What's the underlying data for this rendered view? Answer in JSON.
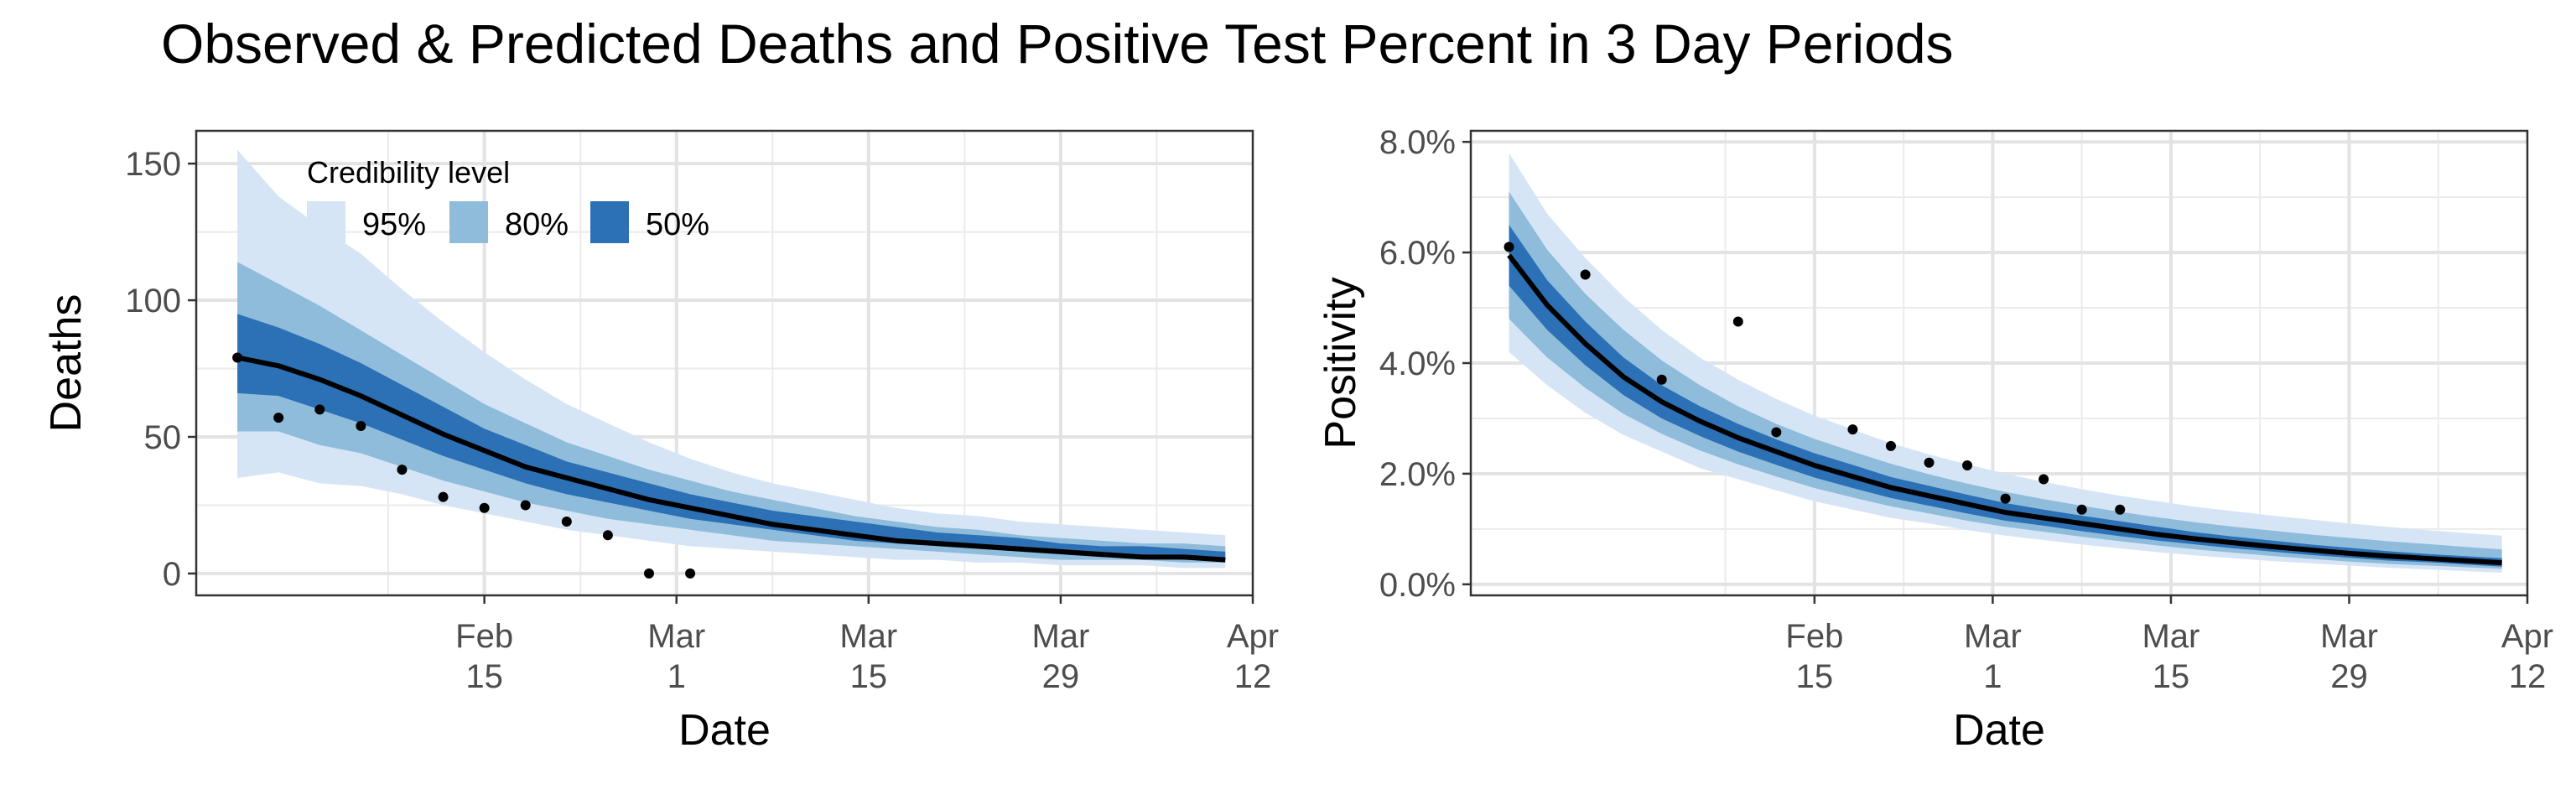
{
  "title": "Observed & Predicted Deaths and Positive Test Percent in 3 Day Periods",
  "legend": {
    "title": "Credibility level",
    "items": [
      {
        "label": "95%",
        "color": "#d6e5f5"
      },
      {
        "label": "80%",
        "color": "#8fbcdb"
      },
      {
        "label": "50%",
        "color": "#2c70b5"
      }
    ]
  },
  "chart_data": [
    {
      "type": "area",
      "panel": "deaths",
      "xlabel": "Date",
      "ylabel": "Deaths",
      "ylim": [
        -8,
        162
      ],
      "xlim": [
        "2021-01-25",
        "2021-04-12"
      ],
      "y_ticks": [
        {
          "value": 0,
          "label": "0"
        },
        {
          "value": 50,
          "label": "50"
        },
        {
          "value": 100,
          "label": "100"
        },
        {
          "value": 150,
          "label": "150"
        }
      ],
      "x_ticks": [
        {
          "date": "2021-02-15",
          "line1": "Feb",
          "line2": "15"
        },
        {
          "date": "2021-03-01",
          "line1": "Mar",
          "line2": "1"
        },
        {
          "date": "2021-03-15",
          "line1": "Mar",
          "line2": "15"
        },
        {
          "date": "2021-03-29",
          "line1": "Mar",
          "line2": "29"
        },
        {
          "date": "2021-04-12",
          "line1": "Apr",
          "line2": "12"
        }
      ],
      "x": [
        "2021-01-28",
        "2021-01-31",
        "2021-02-03",
        "2021-02-06",
        "2021-02-09",
        "2021-02-12",
        "2021-02-15",
        "2021-02-18",
        "2021-02-21",
        "2021-02-24",
        "2021-02-27",
        "2021-03-02",
        "2021-03-05",
        "2021-03-08",
        "2021-03-11",
        "2021-03-14",
        "2021-03-17",
        "2021-03-20",
        "2021-03-23",
        "2021-03-26",
        "2021-03-29",
        "2021-04-01",
        "2021-04-04",
        "2021-04-07",
        "2021-04-10"
      ],
      "median": [
        79,
        76,
        71,
        65,
        58,
        51,
        45,
        39,
        35,
        31,
        27,
        24,
        21,
        18,
        16,
        14,
        12,
        11,
        10,
        9,
        8,
        7,
        6,
        6,
        5
      ],
      "band_95": {
        "lower": [
          35,
          37,
          33,
          32,
          29,
          25,
          22,
          19,
          16,
          14,
          12,
          10,
          9,
          8,
          7,
          6,
          5,
          5,
          4,
          4,
          3,
          3,
          3,
          2,
          2
        ],
        "upper": [
          155,
          138,
          127,
          117,
          104,
          92,
          81,
          71,
          62,
          55,
          48,
          42,
          37,
          33,
          30,
          27,
          24,
          22,
          21,
          19,
          18,
          17,
          16,
          15,
          14
        ]
      },
      "band_80": {
        "lower": [
          52,
          52,
          47,
          44,
          39,
          34,
          30,
          26,
          23,
          20,
          18,
          16,
          14,
          12,
          11,
          10,
          9,
          8,
          7,
          6,
          5,
          5,
          5,
          4,
          4
        ],
        "upper": [
          114,
          106,
          98,
          89,
          80,
          71,
          62,
          55,
          48,
          43,
          38,
          34,
          30,
          27,
          24,
          21,
          19,
          17,
          16,
          14,
          13,
          12,
          11,
          11,
          10
        ]
      },
      "band_50": {
        "lower": [
          66,
          65,
          60,
          55,
          49,
          43,
          38,
          33,
          29,
          26,
          23,
          20,
          18,
          16,
          14,
          12,
          11,
          10,
          9,
          8,
          7,
          6,
          6,
          5,
          5
        ],
        "upper": [
          95,
          90,
          84,
          77,
          69,
          61,
          53,
          47,
          41,
          37,
          33,
          29,
          26,
          23,
          21,
          19,
          17,
          15,
          14,
          13,
          11,
          10,
          10,
          9,
          8
        ]
      },
      "observed": {
        "x": [
          "2021-01-28",
          "2021-01-31",
          "2021-02-03",
          "2021-02-06",
          "2021-02-09",
          "2021-02-12",
          "2021-02-15",
          "2021-02-18",
          "2021-02-21",
          "2021-02-24",
          "2021-02-27",
          "2021-03-02"
        ],
        "y": [
          79,
          57,
          60,
          54,
          38,
          28,
          24,
          25,
          19,
          14,
          0,
          0
        ]
      }
    },
    {
      "type": "area",
      "panel": "positivity",
      "xlabel": "Date",
      "ylabel": "Positivity",
      "ylim": [
        -0.2,
        8.2
      ],
      "xlim": [
        "2021-01-19",
        "2021-04-12"
      ],
      "y_ticks": [
        {
          "value": 0,
          "label": "0.0%"
        },
        {
          "value": 2,
          "label": "2.0%"
        },
        {
          "value": 4,
          "label": "4.0%"
        },
        {
          "value": 6,
          "label": "6.0%"
        },
        {
          "value": 8,
          "label": "8.0%"
        }
      ],
      "x_ticks": [
        {
          "date": "2021-02-15",
          "line1": "Feb",
          "line2": "15"
        },
        {
          "date": "2021-03-01",
          "line1": "Mar",
          "line2": "1"
        },
        {
          "date": "2021-03-15",
          "line1": "Mar",
          "line2": "15"
        },
        {
          "date": "2021-03-29",
          "line1": "Mar",
          "line2": "29"
        },
        {
          "date": "2021-04-12",
          "line1": "Apr",
          "line2": "12"
        }
      ],
      "x": [
        "2021-01-22",
        "2021-01-25",
        "2021-01-28",
        "2021-01-31",
        "2021-02-03",
        "2021-02-06",
        "2021-02-09",
        "2021-02-12",
        "2021-02-15",
        "2021-02-18",
        "2021-02-21",
        "2021-02-24",
        "2021-02-27",
        "2021-03-02",
        "2021-03-05",
        "2021-03-08",
        "2021-03-11",
        "2021-03-14",
        "2021-03-17",
        "2021-03-20",
        "2021-03-23",
        "2021-03-26",
        "2021-03-29",
        "2021-04-01",
        "2021-04-04",
        "2021-04-07",
        "2021-04-10"
      ],
      "median": [
        5.95,
        5.05,
        4.35,
        3.75,
        3.3,
        2.95,
        2.65,
        2.4,
        2.15,
        1.95,
        1.75,
        1.6,
        1.45,
        1.3,
        1.2,
        1.1,
        1.0,
        0.9,
        0.82,
        0.75,
        0.68,
        0.62,
        0.56,
        0.51,
        0.47,
        0.43,
        0.39
      ],
      "band_95": {
        "lower": [
          4.2,
          3.6,
          3.1,
          2.7,
          2.4,
          2.1,
          1.9,
          1.7,
          1.5,
          1.35,
          1.2,
          1.1,
          0.98,
          0.88,
          0.8,
          0.72,
          0.65,
          0.58,
          0.52,
          0.47,
          0.42,
          0.38,
          0.34,
          0.3,
          0.27,
          0.24,
          0.21
        ],
        "upper": [
          7.8,
          6.7,
          5.9,
          5.2,
          4.6,
          4.1,
          3.7,
          3.35,
          3.05,
          2.8,
          2.55,
          2.35,
          2.17,
          2.0,
          1.85,
          1.72,
          1.6,
          1.5,
          1.4,
          1.32,
          1.24,
          1.17,
          1.1,
          1.04,
          0.98,
          0.93,
          0.88
        ]
      },
      "band_80": {
        "lower": [
          4.8,
          4.1,
          3.55,
          3.08,
          2.72,
          2.42,
          2.17,
          1.95,
          1.74,
          1.57,
          1.41,
          1.28,
          1.15,
          1.04,
          0.95,
          0.86,
          0.78,
          0.7,
          0.63,
          0.57,
          0.51,
          0.46,
          0.41,
          0.37,
          0.34,
          0.31,
          0.28
        ],
        "upper": [
          7.1,
          6.05,
          5.25,
          4.6,
          4.05,
          3.6,
          3.22,
          2.9,
          2.63,
          2.4,
          2.18,
          1.99,
          1.82,
          1.67,
          1.54,
          1.42,
          1.31,
          1.21,
          1.12,
          1.04,
          0.97,
          0.9,
          0.84,
          0.78,
          0.73,
          0.68,
          0.63
        ]
      },
      "band_50": {
        "lower": [
          5.4,
          4.6,
          3.96,
          3.42,
          3.0,
          2.68,
          2.4,
          2.16,
          1.93,
          1.74,
          1.56,
          1.42,
          1.28,
          1.15,
          1.06,
          0.96,
          0.87,
          0.79,
          0.72,
          0.65,
          0.59,
          0.53,
          0.48,
          0.43,
          0.4,
          0.36,
          0.32
        ],
        "upper": [
          6.5,
          5.5,
          4.75,
          4.1,
          3.6,
          3.22,
          2.9,
          2.62,
          2.37,
          2.16,
          1.94,
          1.78,
          1.62,
          1.47,
          1.35,
          1.24,
          1.14,
          1.04,
          0.94,
          0.86,
          0.79,
          0.72,
          0.66,
          0.6,
          0.55,
          0.51,
          0.47
        ]
      },
      "observed": {
        "x": [
          "2021-01-22",
          "2021-01-28",
          "2021-02-03",
          "2021-02-09",
          "2021-02-12",
          "2021-02-18",
          "2021-02-21",
          "2021-02-24",
          "2021-02-27",
          "2021-03-02",
          "2021-03-05",
          "2021-03-08",
          "2021-03-11"
        ],
        "y": [
          6.1,
          5.6,
          3.7,
          4.75,
          2.75,
          2.8,
          2.5,
          2.2,
          2.15,
          1.55,
          1.9,
          1.35,
          1.35
        ]
      }
    }
  ]
}
